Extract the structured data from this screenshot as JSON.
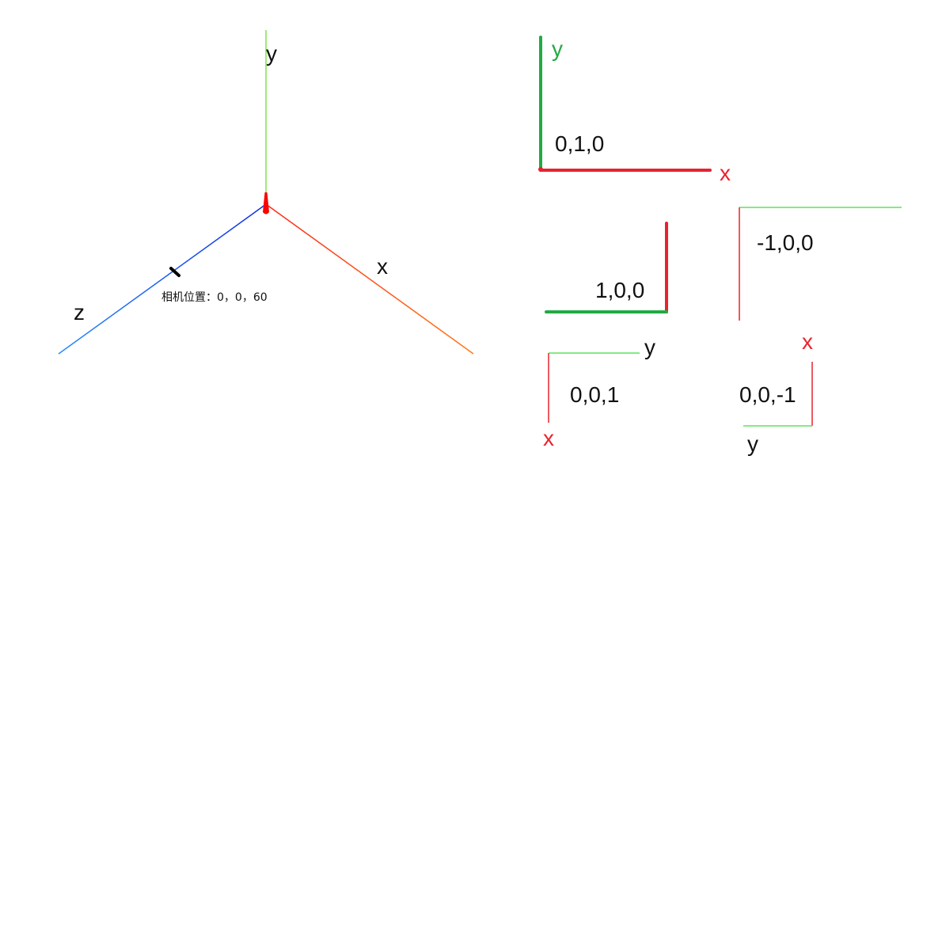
{
  "axes3d": {
    "x_label": "x",
    "y_label": "y",
    "z_label": "z",
    "camera_label": "相机位置：0，0，60",
    "colors": {
      "x_start": "#ff2a1a",
      "x_end": "#ff7a1a",
      "y": "#7be34a",
      "z_start": "#1030e0",
      "z_end": "#2a8cff",
      "origin_marker": "#ff0000",
      "camera_marker": "#000000"
    }
  },
  "views": {
    "top": {
      "value": "0,1,0",
      "axis_h": "x",
      "axis_v": "y"
    },
    "pos_x": {
      "value": "1,0,0"
    },
    "neg_x": {
      "value": "-1,0,0"
    },
    "pos_z": {
      "value": "0,0,1",
      "axis_h": "y",
      "axis_v": "x"
    },
    "neg_z": {
      "value": "0,0,-1",
      "axis_h": "y",
      "axis_v": "x"
    }
  },
  "palette": {
    "red": "#e8232e",
    "green_bold": "#22aa44",
    "green_thin": "#5de35a",
    "text": "#111111"
  }
}
